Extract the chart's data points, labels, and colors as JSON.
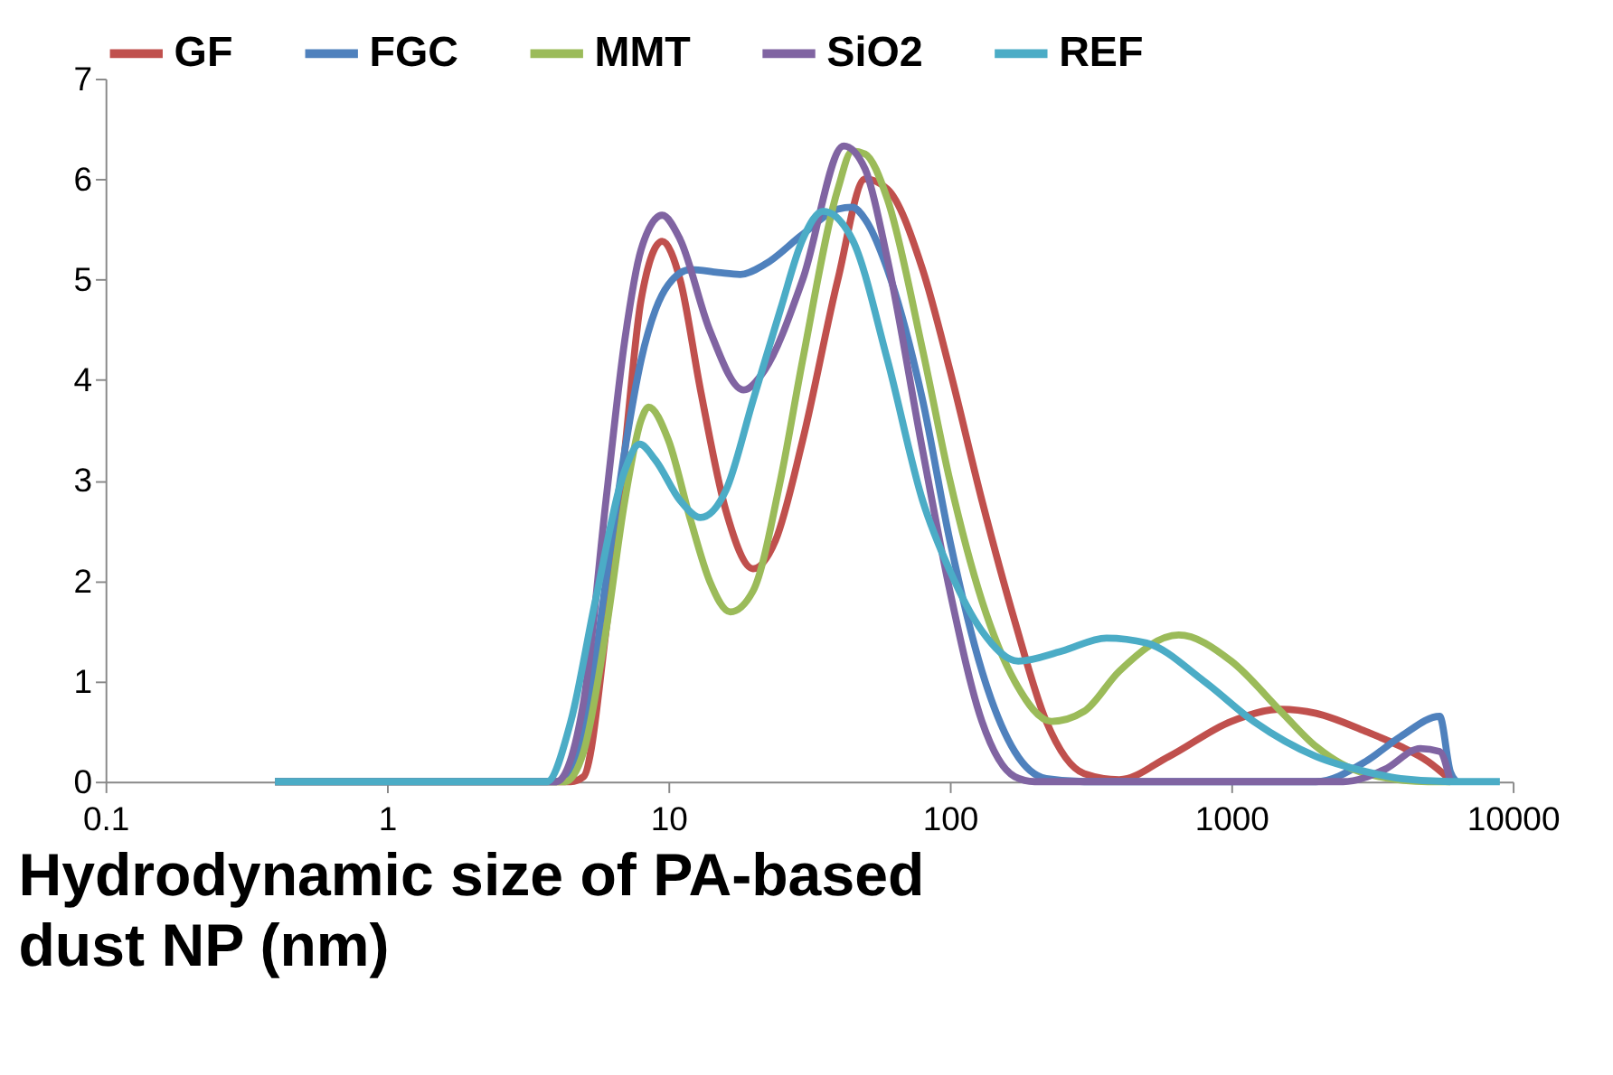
{
  "chart_data": {
    "type": "line",
    "xlabel": "Hydrodynamic size of PA-based dust NP (nm)",
    "log": "x",
    "xlim": [
      0.1,
      10000
    ],
    "xticks": [
      0.1,
      1,
      10,
      100,
      1000,
      10000
    ],
    "ylim": [
      0,
      7
    ],
    "yticks": [
      0,
      1,
      2,
      3,
      4,
      5,
      6,
      7
    ],
    "grid": false,
    "legend": "top",
    "marker": "none",
    "line_style": "solid",
    "series": [
      {
        "name": "GF",
        "color": "#c0504d",
        "x": [
          0.4,
          4.5,
          5,
          6,
          7,
          8,
          9.5,
          11,
          13,
          16,
          20,
          24,
          30,
          40,
          50,
          60,
          80,
          100,
          130,
          170,
          220,
          300,
          400,
          600,
          1000,
          1500,
          2000,
          3000,
          4000,
          5000,
          6000
        ],
        "values": [
          0,
          0,
          0.05,
          1.5,
          3.3,
          4.8,
          5.38,
          5.0,
          3.9,
          2.7,
          2.12,
          2.4,
          3.4,
          5.0,
          6.0,
          5.9,
          5.1,
          4.1,
          2.8,
          1.6,
          0.6,
          0.08,
          0.02,
          0.25,
          0.6,
          0.72,
          0.68,
          0.5,
          0.35,
          0.2,
          0.02
        ]
      },
      {
        "name": "FGC",
        "color": "#4f81bd",
        "x": [
          0.4,
          4,
          5,
          6,
          7,
          8,
          9,
          10,
          12,
          15,
          18,
          22,
          30,
          40,
          45,
          50,
          60,
          80,
          100,
          130,
          170,
          220,
          300,
          2000,
          3000,
          4000,
          5500,
          6000,
          6300
        ],
        "values": [
          0,
          0,
          0.5,
          2.0,
          3.3,
          4.2,
          4.7,
          4.95,
          5.1,
          5.07,
          5.05,
          5.15,
          5.45,
          5.7,
          5.72,
          5.6,
          5.1,
          3.8,
          2.4,
          1.1,
          0.3,
          0.03,
          0,
          0,
          0.2,
          0.45,
          0.65,
          0.1,
          0
        ]
      },
      {
        "name": "MMT",
        "color": "#9bbb59",
        "x": [
          0.4,
          4.3,
          5,
          6,
          7,
          8,
          8.5,
          10,
          12,
          14,
          16.6,
          20,
          25,
          30,
          40,
          45,
          50,
          60,
          80,
          100,
          130,
          170,
          230,
          300,
          400,
          650,
          1000,
          1500,
          2000,
          3000,
          5000,
          6000
        ],
        "values": [
          0,
          0,
          0.3,
          1.5,
          2.8,
          3.6,
          3.73,
          3.4,
          2.6,
          2.0,
          1.69,
          1.9,
          3.0,
          4.2,
          5.9,
          6.28,
          6.25,
          5.8,
          4.3,
          3.0,
          1.8,
          1.0,
          0.6,
          0.7,
          1.1,
          1.46,
          1.2,
          0.7,
          0.35,
          0.08,
          0,
          0
        ]
      },
      {
        "name": "SiO2",
        "color": "#8064a2",
        "x": [
          0.4,
          4,
          5,
          6,
          7,
          8,
          9.5,
          11,
          14,
          18.5,
          22,
          30,
          42,
          50,
          60,
          80,
          100,
          130,
          170,
          200,
          2500,
          3500,
          4700,
          5500,
          6000
        ],
        "values": [
          0,
          0,
          0.8,
          2.8,
          4.4,
          5.3,
          5.64,
          5.4,
          4.5,
          3.9,
          4.1,
          5.0,
          6.33,
          6.1,
          5.2,
          3.3,
          1.9,
          0.6,
          0.05,
          0,
          0,
          0.12,
          0.33,
          0.3,
          0
        ]
      },
      {
        "name": "REF",
        "color": "#4bacc6",
        "x": [
          0.4,
          3.7,
          4.5,
          5.5,
          7,
          7.9,
          9,
          11,
          13,
          16,
          20,
          25,
          30,
          35.5,
          45,
          60,
          80,
          100,
          130,
          175,
          250,
          360,
          500,
          800,
          1200,
          2000,
          3000,
          4000,
          6000,
          9000
        ],
        "values": [
          0,
          0,
          0.6,
          1.8,
          3.1,
          3.36,
          3.2,
          2.8,
          2.63,
          2.9,
          3.8,
          4.7,
          5.4,
          5.68,
          5.4,
          4.2,
          2.8,
          2.1,
          1.5,
          1.2,
          1.3,
          1.43,
          1.38,
          1.0,
          0.6,
          0.25,
          0.1,
          0.03,
          0,
          0
        ]
      }
    ]
  }
}
